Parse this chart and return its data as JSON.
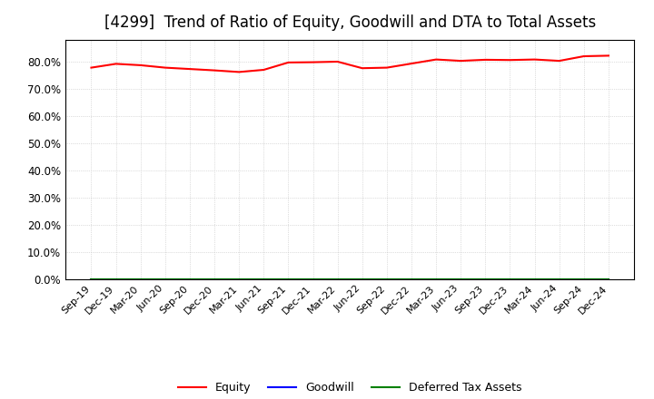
{
  "title": "[4299]  Trend of Ratio of Equity, Goodwill and DTA to Total Assets",
  "x_labels": [
    "Sep-19",
    "Dec-19",
    "Mar-20",
    "Jun-20",
    "Sep-20",
    "Dec-20",
    "Mar-21",
    "Jun-21",
    "Sep-21",
    "Dec-21",
    "Mar-22",
    "Jun-22",
    "Sep-22",
    "Dec-22",
    "Mar-23",
    "Jun-23",
    "Sep-23",
    "Dec-23",
    "Mar-24",
    "Jun-24",
    "Sep-24",
    "Dec-24"
  ],
  "equity": [
    0.778,
    0.792,
    0.787,
    0.778,
    0.773,
    0.768,
    0.762,
    0.77,
    0.797,
    0.798,
    0.8,
    0.776,
    0.778,
    0.793,
    0.808,
    0.803,
    0.807,
    0.806,
    0.808,
    0.803,
    0.82,
    0.822
  ],
  "goodwill": [
    0.0,
    0.0,
    0.0,
    0.0,
    0.0,
    0.0,
    0.0,
    0.0,
    0.0,
    0.0,
    0.0,
    0.0,
    0.0,
    0.0,
    0.0,
    0.0,
    0.0,
    0.0,
    0.0,
    0.0,
    0.0,
    0.0
  ],
  "dta": [
    0.0,
    0.0,
    0.0,
    0.0,
    0.0,
    0.0,
    0.0,
    0.0,
    0.0,
    0.0,
    0.0,
    0.0,
    0.0,
    0.0,
    0.0,
    0.0,
    0.0,
    0.0,
    0.0,
    0.0,
    0.0,
    0.0
  ],
  "equity_color": "#FF0000",
  "goodwill_color": "#0000FF",
  "dta_color": "#008000",
  "ylim": [
    0.0,
    0.88
  ],
  "yticks": [
    0.0,
    0.1,
    0.2,
    0.3,
    0.4,
    0.5,
    0.6,
    0.7,
    0.8
  ],
  "background_color": "#FFFFFF",
  "plot_bg_color": "#FFFFFF",
  "grid_color": "#C0C0C0",
  "title_fontsize": 12,
  "legend_labels": [
    "Equity",
    "Goodwill",
    "Deferred Tax Assets"
  ]
}
